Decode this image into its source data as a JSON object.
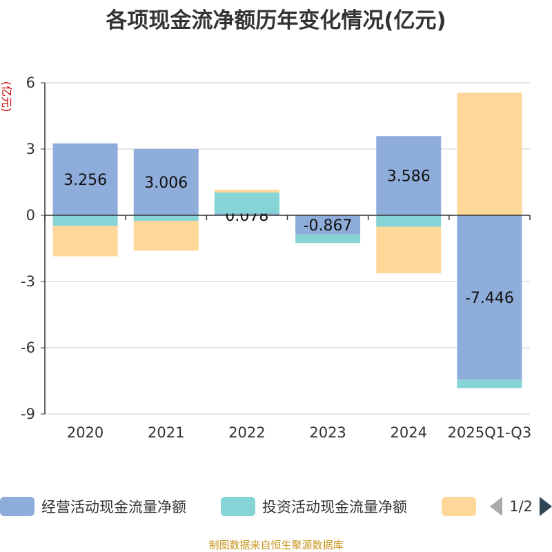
{
  "chart_data": {
    "type": "bar",
    "stacked": true,
    "title": "各项现金流净额历年变化情况(亿元)",
    "ylabel": "(亿元)",
    "categories": [
      "2020",
      "2021",
      "2022",
      "2023",
      "2024",
      "2025Q1-Q3"
    ],
    "ylim": [
      -9,
      6
    ],
    "yticks": [
      6,
      3,
      0,
      -3,
      -6,
      -9
    ],
    "grid": true,
    "legend_position": "bottom",
    "series": [
      {
        "name": "经营活动现金流量净额",
        "color": "#8fadda",
        "values": [
          3.256,
          3.006,
          0.078,
          -0.867,
          3.586,
          -7.446
        ],
        "labels": [
          "3.256",
          "3.006",
          "0.078",
          "-0.867",
          "3.586",
          "-7.446"
        ]
      },
      {
        "name": "投资活动现金流量净额",
        "color": "#86d4d6",
        "values": [
          -0.48,
          -0.25,
          0.95,
          -0.39,
          -0.52,
          -0.38
        ]
      },
      {
        "name": "",
        "color": "#ffd899",
        "values": [
          -1.38,
          -1.35,
          0.13,
          0.02,
          -2.11,
          5.55
        ]
      }
    ]
  },
  "legend": {
    "items": [
      "经营活动现金流量净额",
      "投资活动现金流量净额",
      ""
    ],
    "page": "1/2"
  },
  "source": "制图数据来自恒生聚源数据库"
}
